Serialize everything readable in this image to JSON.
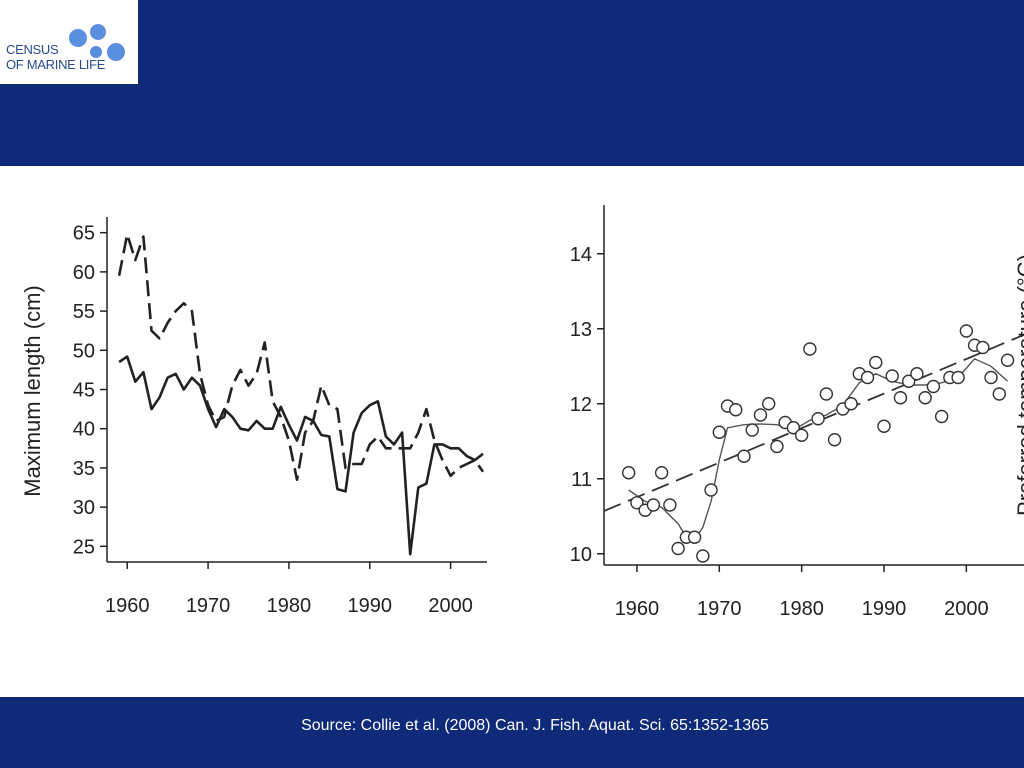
{
  "colors": {
    "band": "#0e2a78",
    "logo_blue": "#5a8fe0",
    "ink": "#222222"
  },
  "logo": {
    "line1": "CENSUS",
    "line2": "OF MARINE LIFE"
  },
  "source": "Source: Collie et al. (2008) Can. J. Fish. Aquat. Sci. 65:1352-1365",
  "chart_data": [
    {
      "type": "line",
      "ylabel": "Maximum length (cm)",
      "xlabel": "",
      "x_ticks": [
        1960,
        1970,
        1980,
        1990,
        2000
      ],
      "y_ticks": [
        25,
        30,
        35,
        40,
        45,
        50,
        55,
        60,
        65
      ],
      "xlim": [
        1957.5,
        2004.5
      ],
      "ylim": [
        23,
        67
      ],
      "grid": false,
      "series": [
        {
          "style": "solid",
          "x": [
            1959,
            1960,
            1961,
            1962,
            1963,
            1964,
            1965,
            1966,
            1967,
            1968,
            1969,
            1970,
            1971,
            1972,
            1973,
            1974,
            1975,
            1976,
            1977,
            1978,
            1979,
            1980,
            1981,
            1982,
            1983,
            1984,
            1985,
            1986,
            1987,
            1988,
            1989,
            1990,
            1991,
            1992,
            1993,
            1994,
            1995,
            1996,
            1997,
            1998,
            1999,
            2000,
            2001,
            2002,
            2003,
            2004
          ],
          "values": [
            48.5,
            49.2,
            46,
            47.2,
            42.5,
            44,
            46.5,
            47,
            45,
            46.5,
            45.5,
            42.5,
            40.2,
            42.5,
            41.5,
            40,
            39.8,
            41,
            40,
            40,
            42.8,
            40.5,
            38.5,
            41.5,
            41,
            39.2,
            39,
            32.3,
            32,
            39.5,
            42,
            43,
            43.5,
            39,
            38,
            39.5,
            24,
            32.5,
            33,
            38,
            38,
            37.5,
            37.5,
            36.5,
            36,
            36.8
          ]
        },
        {
          "style": "dashed",
          "x": [
            1959,
            1960,
            1961,
            1962,
            1963,
            1964,
            1965,
            1966,
            1967,
            1968,
            1969,
            1970,
            1971,
            1972,
            1973,
            1974,
            1975,
            1976,
            1977,
            1978,
            1979,
            1980,
            1981,
            1982,
            1983,
            1984,
            1985,
            1986,
            1987,
            1988,
            1989,
            1990,
            1991,
            1992,
            1993,
            1994,
            1995,
            1996,
            1997,
            1998,
            1999,
            2000,
            2001,
            2002,
            2003,
            2004
          ],
          "values": [
            59.5,
            64.8,
            61.5,
            64.5,
            52.5,
            51.5,
            53.5,
            55,
            56,
            55,
            47,
            43,
            41,
            41.5,
            45.5,
            47.5,
            45.5,
            47,
            51,
            43.5,
            41.5,
            38.5,
            33.5,
            39.5,
            41,
            45.5,
            43,
            42.5,
            35,
            35.5,
            35.5,
            38,
            39,
            37.5,
            37.5,
            37.5,
            37.5,
            39.5,
            42.5,
            38.5,
            36,
            34,
            35,
            35.5,
            36,
            34.5
          ]
        }
      ]
    },
    {
      "type": "scatter",
      "ylabel": "Preferred temperature (°C)",
      "xlabel": "",
      "x_ticks": [
        1960,
        1970,
        1980,
        1990,
        2000
      ],
      "y_ticks": [
        10,
        11,
        12,
        13,
        14
      ],
      "xlim": [
        1956,
        2007
      ],
      "ylim": [
        9.85,
        14.65
      ],
      "grid": false,
      "points": {
        "x": [
          1959,
          1960,
          1961,
          1962,
          1963,
          1964,
          1965,
          1966,
          1967,
          1968,
          1969,
          1970,
          1971,
          1972,
          1973,
          1974,
          1975,
          1976,
          1977,
          1978,
          1979,
          1980,
          1981,
          1982,
          1983,
          1984,
          1985,
          1986,
          1987,
          1988,
          1989,
          1990,
          1991,
          1992,
          1993,
          1994,
          1995,
          1996,
          1997,
          1998,
          1999,
          2000,
          2001,
          2002,
          2003,
          2004,
          2005
        ],
        "values": [
          11.08,
          10.68,
          10.58,
          10.65,
          11.08,
          10.65,
          10.07,
          10.22,
          10.22,
          9.97,
          10.85,
          11.62,
          11.97,
          11.92,
          11.3,
          11.65,
          11.85,
          12.0,
          11.43,
          11.75,
          11.68,
          11.58,
          12.73,
          11.8,
          12.13,
          11.52,
          11.93,
          12.0,
          12.4,
          12.35,
          12.55,
          11.7,
          12.37,
          12.08,
          12.3,
          12.4,
          12.08,
          12.23,
          11.83,
          12.35,
          12.35,
          12.97,
          12.78,
          12.75,
          12.35,
          12.13,
          12.58
        ]
      },
      "smooth": {
        "x": [
          1959,
          1961,
          1963,
          1965,
          1966,
          1967,
          1968,
          1969,
          1970,
          1971,
          1973,
          1975,
          1977,
          1979,
          1981,
          1983,
          1985,
          1987,
          1989,
          1991,
          1993,
          1995,
          1997,
          1999,
          2001,
          2003,
          2005
        ],
        "values": [
          10.85,
          10.7,
          10.62,
          10.4,
          10.22,
          10.2,
          10.35,
          10.7,
          11.25,
          11.68,
          11.72,
          11.73,
          11.72,
          11.65,
          11.78,
          11.85,
          11.98,
          12.28,
          12.4,
          12.3,
          12.25,
          12.25,
          12.28,
          12.35,
          12.6,
          12.5,
          12.3
        ]
      },
      "trend": {
        "style": "dashed",
        "x": [
          1956,
          2007
        ],
        "values": [
          10.57,
          12.92
        ]
      }
    }
  ]
}
